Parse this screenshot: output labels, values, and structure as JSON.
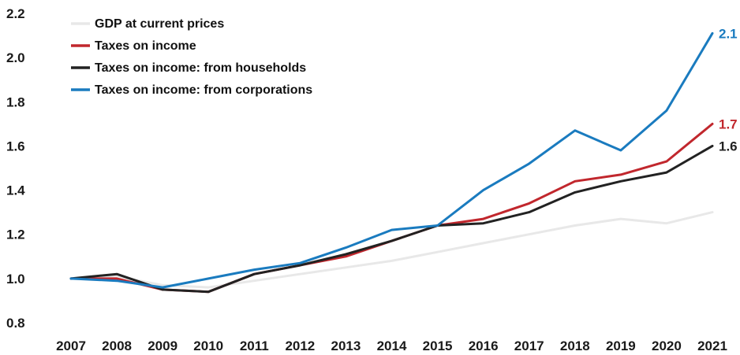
{
  "chart_data": {
    "type": "line",
    "title": "",
    "xlabel": "",
    "ylabel": "",
    "ylim": [
      0.8,
      2.2
    ],
    "y_ticks": [
      "0.8",
      "1.0",
      "1.2",
      "1.4",
      "1.6",
      "1.8",
      "2.0",
      "2.2"
    ],
    "categories": [
      "2007",
      "2008",
      "2009",
      "2010",
      "2011",
      "2012",
      "2013",
      "2014",
      "2015",
      "2016",
      "2017",
      "2018",
      "2019",
      "2020",
      "2021"
    ],
    "grid": false,
    "legend_position": "top-left",
    "series": [
      {
        "name": "GDP at current prices",
        "color": "#e8e8e8",
        "values": [
          1.0,
          1.01,
          0.97,
          0.96,
          0.99,
          1.02,
          1.05,
          1.08,
          1.12,
          1.16,
          1.2,
          1.24,
          1.27,
          1.25,
          1.3
        ],
        "end_label": ""
      },
      {
        "name": "Taxes on income",
        "color": "#c1272d",
        "values": [
          1.0,
          1.0,
          0.95,
          0.94,
          1.02,
          1.06,
          1.1,
          1.17,
          1.24,
          1.27,
          1.34,
          1.44,
          1.47,
          1.53,
          1.7
        ],
        "end_label": "1.7"
      },
      {
        "name": "Taxes on income: from households",
        "color": "#222222",
        "values": [
          1.0,
          1.02,
          0.95,
          0.94,
          1.02,
          1.06,
          1.11,
          1.17,
          1.24,
          1.25,
          1.3,
          1.39,
          1.44,
          1.48,
          1.6
        ],
        "end_label": "1.6"
      },
      {
        "name": "Taxes on income: from corporations",
        "color": "#1a7bbf",
        "values": [
          1.0,
          0.99,
          0.96,
          1.0,
          1.04,
          1.07,
          1.14,
          1.22,
          1.24,
          1.4,
          1.52,
          1.67,
          1.58,
          1.76,
          2.11
        ],
        "end_label": "2.1"
      }
    ]
  }
}
